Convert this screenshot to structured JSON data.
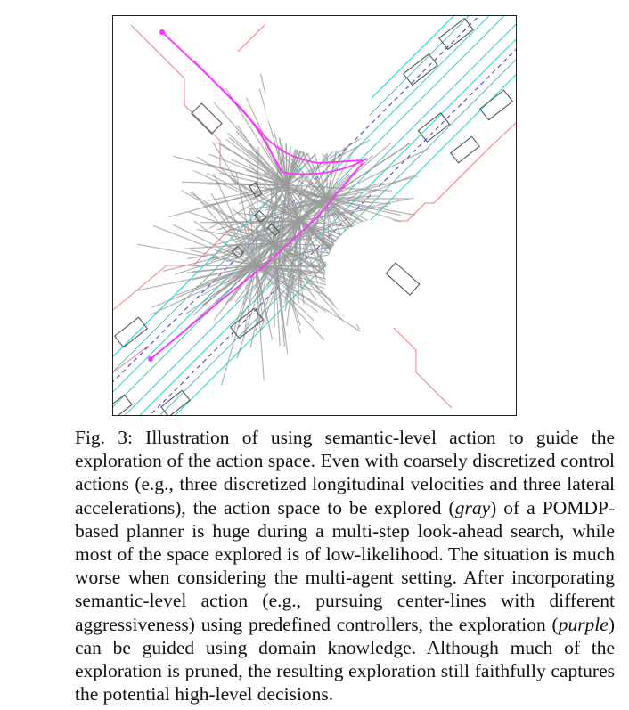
{
  "figure": {
    "colors": {
      "explored_space": "#999999",
      "semantic_exploration": "#ff33ff",
      "lane_lines": "#33cccc",
      "road_boundary": "#f08080",
      "center_line": "#3333cc",
      "vehicles": "#555555"
    }
  },
  "caption": {
    "label": "Fig. 3:",
    "part1": " Illustration of using semantic-level action to guide the exploration of the action space. Even with coarsely discretized control actions (e.g., three discretized longitudinal velocities and three lateral accelerations), the action space to be explored (",
    "gray": "gray",
    "part2": ") of a POMDP-based planner is huge during a multi-step look-ahead search, while most of the space explored is of low-likelihood. The situation is much worse when considering the multi-agent setting. After incorporating semantic-level action (e.g., pursuing center-lines with different aggressiveness) using predefined controllers, the exploration (",
    "purple": "purple",
    "part3": ") can be guided using domain knowledge. Although much of the exploration is pruned, the resulting exploration still faithfully captures the potential high-level decisions."
  }
}
